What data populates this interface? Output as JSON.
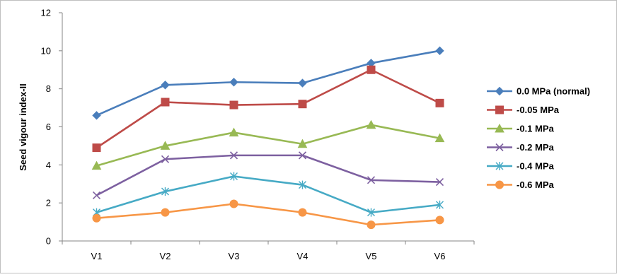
{
  "chart_data": {
    "type": "line",
    "ylabel": "Seed vigour index-II",
    "xlabel": "",
    "ylim": [
      0,
      12
    ],
    "yticks": [
      0,
      2,
      4,
      6,
      8,
      10,
      12
    ],
    "categories": [
      "V1",
      "V2",
      "V3",
      "V4",
      "V5",
      "V6"
    ],
    "legend_position": "right",
    "grid": false,
    "series": [
      {
        "name": "0.0 MPa (normal)",
        "values": [
          6.6,
          8.2,
          8.35,
          8.3,
          9.35,
          10.0
        ],
        "color": "#4A7EBB",
        "marker": "diamond"
      },
      {
        "name": "-0.05 MPa",
        "values": [
          4.9,
          7.3,
          7.15,
          7.2,
          9.0,
          7.25
        ],
        "color": "#BE4B48",
        "marker": "square"
      },
      {
        "name": "-0.1 MPa",
        "values": [
          3.95,
          5.0,
          5.7,
          5.1,
          6.1,
          5.4
        ],
        "color": "#98B954",
        "marker": "triangle"
      },
      {
        "name": "-0.2 MPa",
        "values": [
          2.4,
          4.3,
          4.5,
          4.5,
          3.2,
          3.1
        ],
        "color": "#7D60A0",
        "marker": "x"
      },
      {
        "name": "-0.4 MPa",
        "values": [
          1.5,
          2.6,
          3.4,
          2.95,
          1.5,
          1.9
        ],
        "color": "#46AAC5",
        "marker": "star"
      },
      {
        "name": "-0.6 MPa",
        "values": [
          1.2,
          1.5,
          1.95,
          1.5,
          0.85,
          1.1
        ],
        "color": "#F79646",
        "marker": "circle"
      }
    ]
  }
}
